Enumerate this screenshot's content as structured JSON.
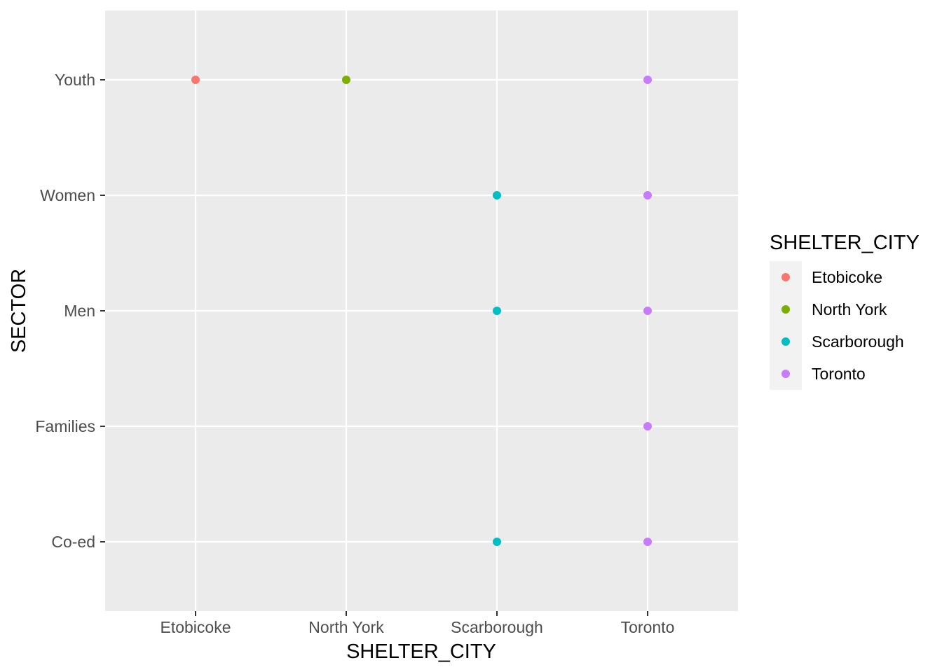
{
  "chart_data": {
    "type": "scatter",
    "xlabel": "SHELTER_CITY",
    "ylabel": "SECTOR",
    "x_categories": [
      "Etobicoke",
      "North York",
      "Scarborough",
      "Toronto"
    ],
    "y_categories": [
      "Co-ed",
      "Families",
      "Men",
      "Women",
      "Youth"
    ],
    "grid": true,
    "legend": {
      "title": "SHELTER_CITY",
      "position": "right",
      "entries": [
        "Etobicoke",
        "North York",
        "Scarborough",
        "Toronto"
      ]
    },
    "colors": {
      "Etobicoke": "#F8766D",
      "North York": "#7CAE00",
      "Scarborough": "#00BFC4",
      "Toronto": "#C77CFF"
    },
    "points": [
      {
        "x": "Etobicoke",
        "y": "Youth"
      },
      {
        "x": "North York",
        "y": "Youth"
      },
      {
        "x": "Scarborough",
        "y": "Women"
      },
      {
        "x": "Scarborough",
        "y": "Men"
      },
      {
        "x": "Scarborough",
        "y": "Co-ed"
      },
      {
        "x": "Toronto",
        "y": "Youth"
      },
      {
        "x": "Toronto",
        "y": "Women"
      },
      {
        "x": "Toronto",
        "y": "Men"
      },
      {
        "x": "Toronto",
        "y": "Families"
      },
      {
        "x": "Toronto",
        "y": "Co-ed"
      }
    ]
  }
}
